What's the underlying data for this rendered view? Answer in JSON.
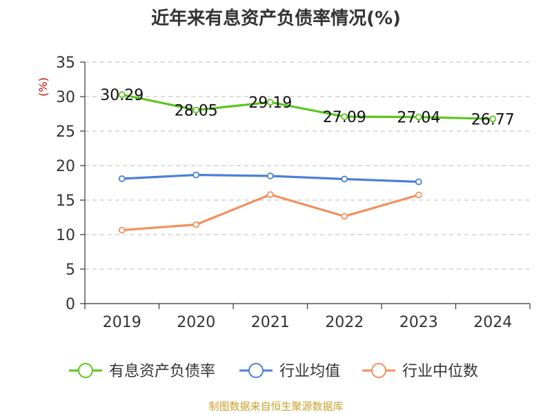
{
  "title": "近年来有息资产负债率情况(%)",
  "source": "制图数据来自恒生聚源数据库",
  "chart_data": {
    "type": "line",
    "title": "近年来有息资产负债率情况(%)",
    "ylabel": "(%)",
    "ylim": [
      0,
      35
    ],
    "yticks": [
      0,
      5,
      10,
      15,
      20,
      25,
      30,
      35
    ],
    "categories": [
      "2019",
      "2020",
      "2021",
      "2022",
      "2023",
      "2024"
    ],
    "grid": true,
    "legend_position": "bottom",
    "series": [
      {
        "name": "有息资产负债率",
        "color": "#5cc41f",
        "values": [
          30.29,
          28.05,
          29.19,
          27.09,
          27.04,
          26.77
        ],
        "labels": [
          "30.29",
          "28.05",
          "29.19",
          "27.09",
          "27.04",
          "26.77"
        ]
      },
      {
        "name": "行业均值",
        "color": "#4a7fd8",
        "values": [
          18.1,
          18.65,
          18.5,
          18.05,
          17.65,
          null
        ]
      },
      {
        "name": "行业中位数",
        "color": "#f58e5b",
        "values": [
          10.65,
          11.45,
          15.8,
          12.65,
          15.75,
          null
        ]
      }
    ]
  }
}
